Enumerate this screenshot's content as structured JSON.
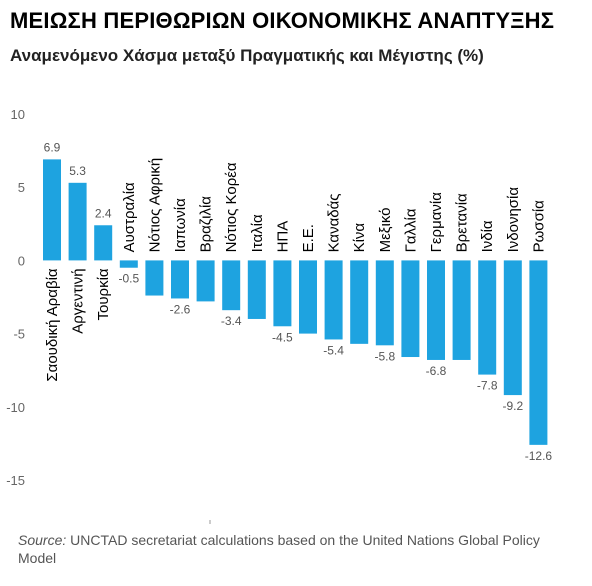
{
  "title": "ΜΕΙΩΣΗ ΠΕΡΙΘΩΡΙΩΝ ΟΙΚΟΝΟΜΙΚΗΣ ΑΝΑΠΤΥΞΗΣ",
  "subtitle": "Αναμενόμενο Χάσμα μεταξύ Πραγματικής και Μέγιστης (%)",
  "source_label": "Source:",
  "source_text": "UNCTAD secretariat calculations based on the United Nations Global Policy Model",
  "colors": {
    "bar": "#1ea3e0",
    "axis": "#999999",
    "text": "#000000"
  },
  "chart_data": {
    "type": "bar",
    "title": "ΜΕΙΩΣΗ ΠΕΡΙΘΩΡΙΩΝ ΟΙΚΟΝΟΜΙΚΗΣ ΑΝΑΠΤΥΞΗΣ",
    "subtitle": "Αναμενόμενο Χάσμα μεταξύ Πραγματικής και Μέγιστης (%)",
    "categories": [
      "Σαουδική Αραβία",
      "Αργεντινή",
      "Τουρκία",
      "Αυστραλία",
      "Νότιος Αφρική",
      "Ιαπωνία",
      "Βραζιλία",
      "Νότιος Κορέα",
      "Ιταλία",
      "ΗΠΑ",
      "Ε.Ε.",
      "Καναδάς",
      "Κίνα",
      "Μεξικό",
      "Γαλλία",
      "Γερμανία",
      "Βρετανία",
      "Ινδία",
      "Ινδονησία",
      "Ρωσσία"
    ],
    "values": [
      6.9,
      5.3,
      2.4,
      -0.5,
      -2.4,
      -2.6,
      -2.8,
      -3.4,
      -4.0,
      -4.5,
      -5.0,
      -5.4,
      -5.7,
      -5.8,
      -6.6,
      -6.8,
      -6.8,
      -7.8,
      -9.2,
      -12.6
    ],
    "data_labels": [
      "6.9",
      "5.3",
      "2.4",
      "-0.5",
      "",
      "-2.6",
      "",
      "-3.4",
      "",
      "-4.5",
      "",
      "-5.4",
      "",
      "-5.8",
      "",
      "-6.8",
      "",
      "-7.8",
      "-9.2",
      "-12.6"
    ],
    "yticks": [
      "10",
      "5",
      "0",
      "-5",
      "-10",
      "-15"
    ],
    "ylim": [
      -15,
      10
    ],
    "xlabel": "",
    "ylabel": "",
    "grid": false,
    "legend": "none"
  }
}
